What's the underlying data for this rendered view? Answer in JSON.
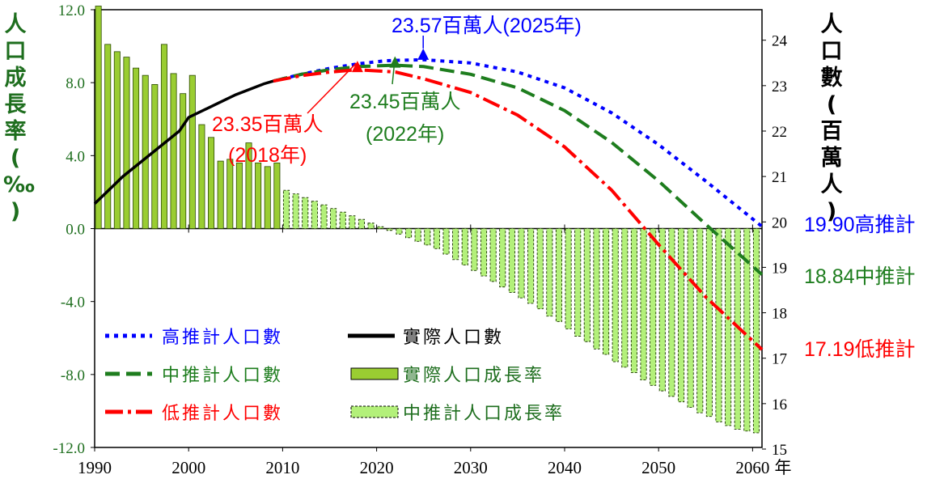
{
  "chart_data": {
    "type": "bar+line",
    "x_axis": {
      "ticks": [
        1990,
        2000,
        2010,
        2020,
        2030,
        2040,
        2050,
        2060
      ],
      "unit": "年",
      "range": [
        1990,
        2061
      ]
    },
    "left_axis": {
      "label": "人口成長率(‰)",
      "ticks": [
        "12.0",
        "8.0",
        "4.0",
        "0.0",
        "-4.0",
        "-8.0",
        "-12.0"
      ],
      "range": [
        -12,
        12
      ],
      "color": "#1e6e1e"
    },
    "right_axis": {
      "label": "人口數(百萬人)",
      "ticks": [
        "24",
        "23",
        "22",
        "21",
        "20",
        "19",
        "18",
        "17",
        "16",
        "15"
      ],
      "range": [
        15,
        24.6
      ],
      "color": "#000000"
    },
    "actual_growth": {
      "name": "實際人口成長率",
      "color": "#9acd32",
      "years": [
        1990,
        1991,
        1992,
        1993,
        1994,
        1995,
        1996,
        1997,
        1998,
        1999,
        2000,
        2001,
        2002,
        2003,
        2004,
        2005,
        2006,
        2007,
        2008,
        2009
      ],
      "values": [
        12.2,
        10.1,
        9.7,
        9.4,
        8.8,
        8.4,
        7.9,
        10.1,
        8.5,
        7.4,
        8.4,
        5.7,
        5.0,
        3.7,
        3.8,
        3.6,
        4.7,
        3.6,
        3.4,
        3.6
      ]
    },
    "projected_growth": {
      "name": "中推計人口成長率",
      "color": "#b3f07a",
      "years": [
        2010,
        2011,
        2012,
        2013,
        2014,
        2015,
        2016,
        2017,
        2018,
        2019,
        2020,
        2021,
        2022,
        2023,
        2024,
        2025,
        2026,
        2027,
        2028,
        2029,
        2030,
        2031,
        2032,
        2033,
        2034,
        2035,
        2036,
        2037,
        2038,
        2039,
        2040,
        2041,
        2042,
        2043,
        2044,
        2045,
        2046,
        2047,
        2048,
        2049,
        2050,
        2051,
        2052,
        2053,
        2054,
        2055,
        2056,
        2057,
        2058,
        2059,
        2060
      ],
      "values": [
        2.1,
        1.9,
        1.7,
        1.5,
        1.3,
        1.1,
        0.9,
        0.7,
        0.5,
        0.3,
        0.1,
        -0.1,
        -0.3,
        -0.5,
        -0.7,
        -0.9,
        -1.1,
        -1.4,
        -1.7,
        -2.0,
        -2.3,
        -2.6,
        -2.9,
        -3.2,
        -3.5,
        -3.8,
        -4.1,
        -4.4,
        -4.8,
        -5.1,
        -5.5,
        -5.9,
        -6.2,
        -6.6,
        -6.9,
        -7.3,
        -7.6,
        -7.9,
        -8.3,
        -8.6,
        -8.9,
        -9.2,
        -9.5,
        -9.8,
        -10.1,
        -10.3,
        -10.6,
        -10.8,
        -11.0,
        -11.1,
        -11.2
      ]
    },
    "actual_population": {
      "name": "實際人口數",
      "color": "#000000",
      "years": [
        1990,
        1993,
        1996,
        1999,
        2000,
        2002,
        2005,
        2008,
        2009
      ],
      "values": [
        20.4,
        21.0,
        21.5,
        22.0,
        22.3,
        22.5,
        22.8,
        23.04,
        23.1
      ]
    },
    "high_projection": {
      "name": "高推計人口數",
      "color": "#0000ff",
      "years": [
        2009,
        2012,
        2015,
        2018,
        2021,
        2025,
        2030,
        2035,
        2040,
        2045,
        2050,
        2055,
        2061
      ],
      "values": [
        23.1,
        23.25,
        23.38,
        23.48,
        23.55,
        23.57,
        23.5,
        23.3,
        22.95,
        22.4,
        21.7,
        20.9,
        19.9
      ]
    },
    "medium_projection": {
      "name": "中推計人口數",
      "color": "#1e7d1e",
      "years": [
        2009,
        2012,
        2015,
        2018,
        2022,
        2025,
        2030,
        2035,
        2040,
        2045,
        2050,
        2055,
        2061
      ],
      "values": [
        23.1,
        23.25,
        23.35,
        23.42,
        23.45,
        23.42,
        23.25,
        22.95,
        22.45,
        21.75,
        20.9,
        19.95,
        18.84
      ]
    },
    "low_projection": {
      "name": "低推計人口數",
      "color": "#ff0000",
      "years": [
        2009,
        2012,
        2015,
        2018,
        2022,
        2025,
        2030,
        2035,
        2040,
        2045,
        2050,
        2055,
        2061
      ],
      "values": [
        23.1,
        23.22,
        23.3,
        23.35,
        23.3,
        23.15,
        22.85,
        22.35,
        21.65,
        20.7,
        19.5,
        18.35,
        17.19
      ]
    },
    "annotations": {
      "high_peak": "23.57百萬人(2025年)",
      "medium_peak_value": "23.45百萬人",
      "medium_peak_year": "(2022年)",
      "low_peak_value": "23.35百萬人",
      "low_peak_year": "(2018年)",
      "high_end": "19.90高推計",
      "medium_end": "18.84中推計",
      "low_end": "17.19低推計"
    },
    "legend": {
      "placement": "bottom-left",
      "items": [
        {
          "label": "高推計人口數",
          "color": "#0000ff",
          "style": "dotted"
        },
        {
          "label": "實際人口數",
          "color": "#000000",
          "style": "solid"
        },
        {
          "label": "中推計人口數",
          "color": "#1e7d1e",
          "style": "dashed"
        },
        {
          "label": "實際人口成長率",
          "color": "#9acd32",
          "style": "bar"
        },
        {
          "label": "低推計人口數",
          "color": "#ff0000",
          "style": "dashdot"
        },
        {
          "label": "中推計人口成長率",
          "color": "#b3f07a",
          "style": "bar-dashed"
        }
      ]
    }
  }
}
